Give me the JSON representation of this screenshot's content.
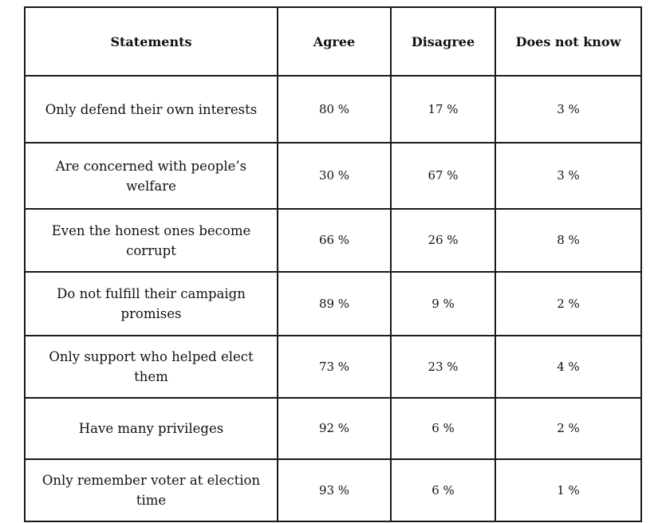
{
  "table": {
    "headers": [
      "Statements",
      "Agree",
      "Disagree",
      "Does not know"
    ],
    "rows": [
      {
        "statement": "Only defend their own interests",
        "agree": "80 %",
        "disagree": "17 %",
        "does_not_know": "3 %"
      },
      {
        "statement": "Are concerned with people’s welfare",
        "agree": "30 %",
        "disagree": "67 %",
        "does_not_know": "3 %"
      },
      {
        "statement": "Even the honest ones become corrupt",
        "agree": "66 %",
        "disagree": "26 %",
        "does_not_know": "8 %"
      },
      {
        "statement": "Do not fulfill their campaign promises",
        "agree": "89 %",
        "disagree": "9 %",
        "does_not_know": "2 %"
      },
      {
        "statement": "Only support who helped elect them",
        "agree": "73 %",
        "disagree": "23 %",
        "does_not_know": "4 %"
      },
      {
        "statement": "Have many privileges",
        "agree": "92 %",
        "disagree": "6 %",
        "does_not_know": "2 %"
      },
      {
        "statement": "Only remember voter at election time",
        "agree": "93 %",
        "disagree": "6 %",
        "does_not_know": "1 %"
      }
    ]
  }
}
